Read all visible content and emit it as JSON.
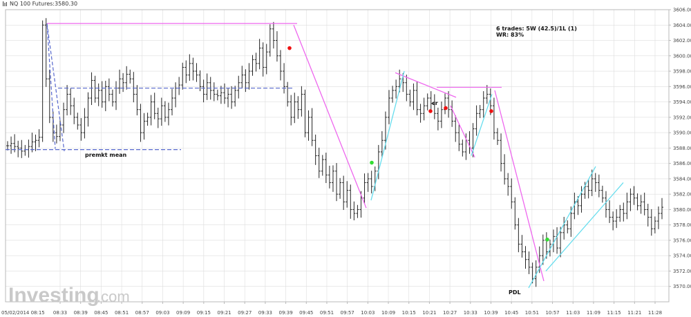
{
  "window": {
    "title": "NQ 100 Futures:3580.30"
  },
  "watermark": {
    "name": "Investing",
    "domain": ".com"
  },
  "chart_data": {
    "type": "ohlc",
    "ylim": [
      3568,
      3606
    ],
    "y_ticks": [
      "3606.00",
      "3604.00",
      "3602.00",
      "3600.00",
      "3598.00",
      "3596.00",
      "3594.00",
      "3592.00",
      "3590.00",
      "3588.00",
      "3586.00",
      "3584.00",
      "3582.00",
      "3580.00",
      "3578.00",
      "3576.00",
      "3574.00",
      "3572.00",
      "3570.00"
    ],
    "x_ticks": [
      "05/02/2014 08:15",
      "08:33",
      "08:39",
      "08:45",
      "08:51",
      "08:57",
      "09:03",
      "09:09",
      "09:15",
      "09:21",
      "09:27",
      "09:33",
      "09:39",
      "09:45",
      "09:51",
      "09:57",
      "10:03",
      "10:09",
      "10:15",
      "10:21",
      "10:27",
      "10:33",
      "10:39",
      "10:45",
      "10:51",
      "10:57",
      "11:03",
      "11:09",
      "11:15",
      "11:21",
      "11:28"
    ],
    "grid": true,
    "bar_closes": [
      3588.3,
      3588.6,
      3588.2,
      3588.0,
      3587.6,
      3587.8,
      3588.2,
      3588.8,
      3589.0,
      3589.4,
      3604.0,
      3597.0,
      3592.0,
      3590.0,
      3589.5,
      3591.0,
      3593.0,
      3595.0,
      3593.5,
      3592.0,
      3591.0,
      3590.0,
      3592.0,
      3594.5,
      3596.8,
      3594.5,
      3595.5,
      3594.0,
      3596.0,
      3595.0,
      3594.0,
      3595.8,
      3597.0,
      3596.5,
      3597.6,
      3597.0,
      3595.0,
      3593.0,
      3590.0,
      3591.5,
      3592.0,
      3594.0,
      3592.5,
      3591.8,
      3593.5,
      3592.0,
      3593.0,
      3594.5,
      3595.8,
      3596.2,
      3598.5,
      3597.5,
      3599.0,
      3598.0,
      3597.5,
      3596.0,
      3595.0,
      3596.5,
      3595.5,
      3595.0,
      3594.8,
      3595.2,
      3594.5,
      3595.0,
      3594.0,
      3595.5,
      3596.5,
      3597.5,
      3596.5,
      3598.0,
      3599.5,
      3599.0,
      3601.0,
      3598.5,
      3600.5,
      3603.5,
      3602.0,
      3600.0,
      3598.0,
      3596.0,
      3594.0,
      3592.0,
      3594.0,
      3593.0,
      3595.0,
      3590.0,
      3592.0,
      3589.0,
      3587.0,
      3585.0,
      3586.5,
      3584.5,
      3583.5,
      3585.0,
      3582.0,
      3583.5,
      3581.0,
      3582.5,
      3580.0,
      3579.5,
      3580.0,
      3581.5,
      3583.5,
      3584.0,
      3583.0,
      3585.0,
      3587.5,
      3589.0,
      3592.0,
      3594.5,
      3595.5,
      3596.0,
      3597.0,
      3596.5,
      3595.0,
      3594.0,
      3595.5,
      3593.0,
      3592.5,
      3593.5,
      3594.5,
      3593.8,
      3592.5,
      3591.5,
      3593.0,
      3594.5,
      3593.0,
      3591.5,
      3590.0,
      3588.5,
      3587.5,
      3589.0,
      3588.0,
      3590.5,
      3592.5,
      3593.0,
      3594.5,
      3595.0,
      3593.5,
      3590.0,
      3589.0,
      3586.0,
      3584.0,
      3583.0,
      3581.0,
      3578.0,
      3575.5,
      3574.5,
      3573.5,
      3572.5,
      3571.0,
      3572.5,
      3574.0,
      3576.0,
      3574.5,
      3575.5,
      3576.5,
      3575.0,
      3577.0,
      3578.0,
      3577.5,
      3579.5,
      3581.0,
      3580.5,
      3582.0,
      3583.0,
      3582.5,
      3584.0,
      3583.5,
      3582.5,
      3581.5,
      3580.0,
      3579.0,
      3578.5,
      3579.0,
      3580.0,
      3579.5,
      3581.0,
      3582.0,
      3581.5,
      3580.5,
      3581.0,
      3580.0,
      3579.0,
      3577.5,
      3578.5,
      3579.5,
      3580.3
    ],
    "annotations": {
      "stats_line1": "6 trades: 5W (42.5)/1L (1)",
      "stats_line2": "WR: 83%",
      "premarket_label": "premkt mean",
      "pdl_label": "PDL",
      "marker_label": "cr"
    },
    "levels": [
      {
        "name": "premkt-mean",
        "price": 3587.8,
        "style": "dashed",
        "color": "#5566cc"
      },
      {
        "name": "blue-mid",
        "price": 3595.8,
        "style": "dashed",
        "color": "#5566cc"
      },
      {
        "name": "magenta-high",
        "price": 3604.2,
        "style": "solid",
        "color": "#ee66ee"
      },
      {
        "name": "magenta-mid-top",
        "price": 3595.9,
        "style": "solid",
        "color": "#ee66ee"
      }
    ],
    "colors": {
      "bars": "#222222",
      "magenta": "#ee66ee",
      "cyan": "#66ddee",
      "blue": "#5566cc",
      "red_dot": "#ee1111",
      "green_dot": "#33dd33",
      "grid": "#dddddd",
      "axis": "#b8b8b8"
    }
  }
}
